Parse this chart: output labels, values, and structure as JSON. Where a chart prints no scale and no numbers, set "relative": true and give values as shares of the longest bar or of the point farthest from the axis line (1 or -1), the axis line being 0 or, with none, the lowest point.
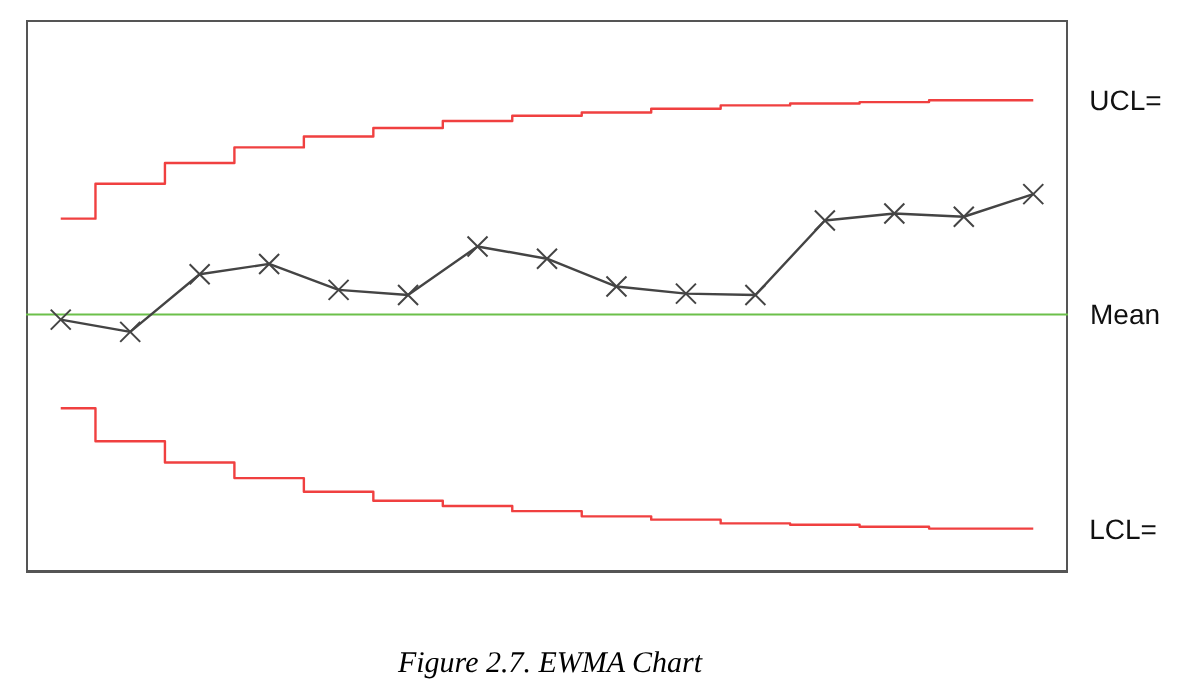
{
  "chart_data": {
    "type": "line",
    "relative": true,
    "marker": "cross",
    "line_style": "solid",
    "categories": [
      null,
      null,
      null,
      null,
      null,
      null,
      null,
      null,
      null,
      null,
      null,
      null,
      null,
      null,
      null
    ],
    "series": [
      {
        "color": "#444444",
        "values": [
          0.535,
          0.509,
          0.631,
          0.653,
          0.598,
          0.587,
          0.69,
          0.664,
          0.605,
          0.59,
          0.587,
          0.745,
          0.76,
          0.753,
          0.801
        ]
      },
      {
        "name": "UCL=",
        "type": "step",
        "marker": "none",
        "color": "#f04040",
        "values": [
          0.749,
          0.823,
          0.867,
          0.9,
          0.923,
          0.941,
          0.956,
          0.967,
          0.974,
          0.982,
          0.989,
          0.993,
          0.996,
          1,
          1
        ]
      },
      {
        "name": "LCL=",
        "type": "step",
        "marker": "none",
        "color": "#f04040",
        "values": [
          0.347,
          0.277,
          0.232,
          0.199,
          0.17,
          0.151,
          0.14,
          0.129,
          0.118,
          0.111,
          0.103,
          0.1,
          0.096,
          0.092,
          0.092
        ]
      }
    ],
    "ref_lines": [
      {
        "axis": "y",
        "value": 0.546,
        "label": "Mean",
        "color": "#6cc04a"
      }
    ],
    "annotations": [
      "Figure 2.7. EWMA Chart"
    ]
  }
}
